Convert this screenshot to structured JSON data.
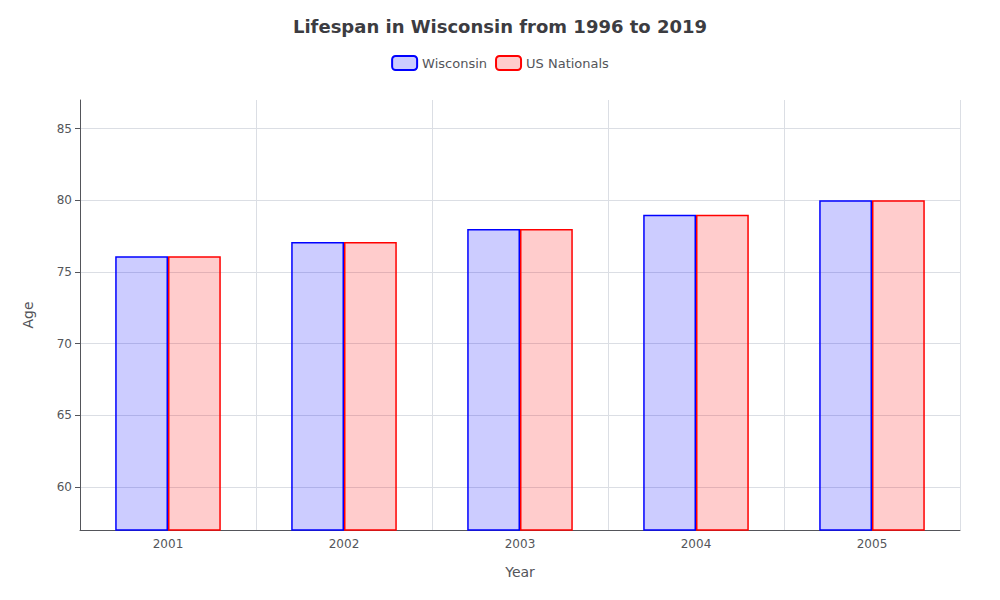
{
  "chart_data": {
    "type": "bar",
    "title": "Lifespan in Wisconsin from 1996 to 2019",
    "x_label": "Year",
    "y_label": "Age",
    "categories": [
      "2001",
      "2002",
      "2003",
      "2004",
      "2005"
    ],
    "series": [
      {
        "name": "Wisconsin",
        "color": "#0000ff",
        "values": [
          76.1,
          77.1,
          78.0,
          79.0,
          80.0
        ]
      },
      {
        "name": "US Nationals",
        "color": "#ff0000",
        "values": [
          76.1,
          77.1,
          78.0,
          79.0,
          80.0
        ]
      }
    ],
    "ylim": [
      57,
      87
    ],
    "yticks": [
      60,
      65,
      70,
      75,
      80,
      85
    ],
    "grid": true,
    "legend": "top"
  }
}
